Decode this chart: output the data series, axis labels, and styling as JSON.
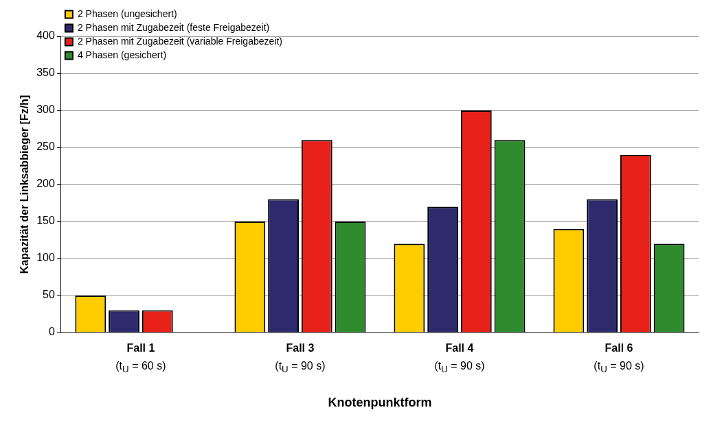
{
  "chart_data": {
    "type": "bar",
    "xlabel": "Knotenpunktform",
    "ylabel": "Kapazität der Linksabbieger [Fz/h]",
    "categories": [
      "Fall 1\n(t$_{U}$ = 60 s)",
      "Fall 3\n(t$_{U}$ = 90 s)",
      "Fall 4\n(t$_{U}$ = 90 s)",
      "Fall 6\n(t$_{U}$ = 90 s)"
    ],
    "series": [
      {
        "name": "2 Phasen (ungesichert)",
        "color": "#ffcc00",
        "values": [
          50,
          150,
          120,
          140
        ]
      },
      {
        "name": "2 Phasen mit Zugabezeit (feste Freigabezeit)",
        "color": "#2e2a6e",
        "values": [
          30,
          180,
          170,
          180
        ]
      },
      {
        "name": "2 Phasen mit Zugabezeit (variable Freigabezeit)",
        "color": "#e8221a",
        "values": [
          30,
          260,
          300,
          240
        ]
      },
      {
        "name": "4 Phasen (gesichert)",
        "color": "#2e8b2e",
        "values": [
          null,
          150,
          260,
          120
        ]
      }
    ],
    "ylim": [
      0,
      400
    ],
    "yticks": [
      0,
      50,
      100,
      150,
      200,
      250,
      300,
      350,
      400
    ],
    "grid": "y",
    "legend": "top left"
  }
}
